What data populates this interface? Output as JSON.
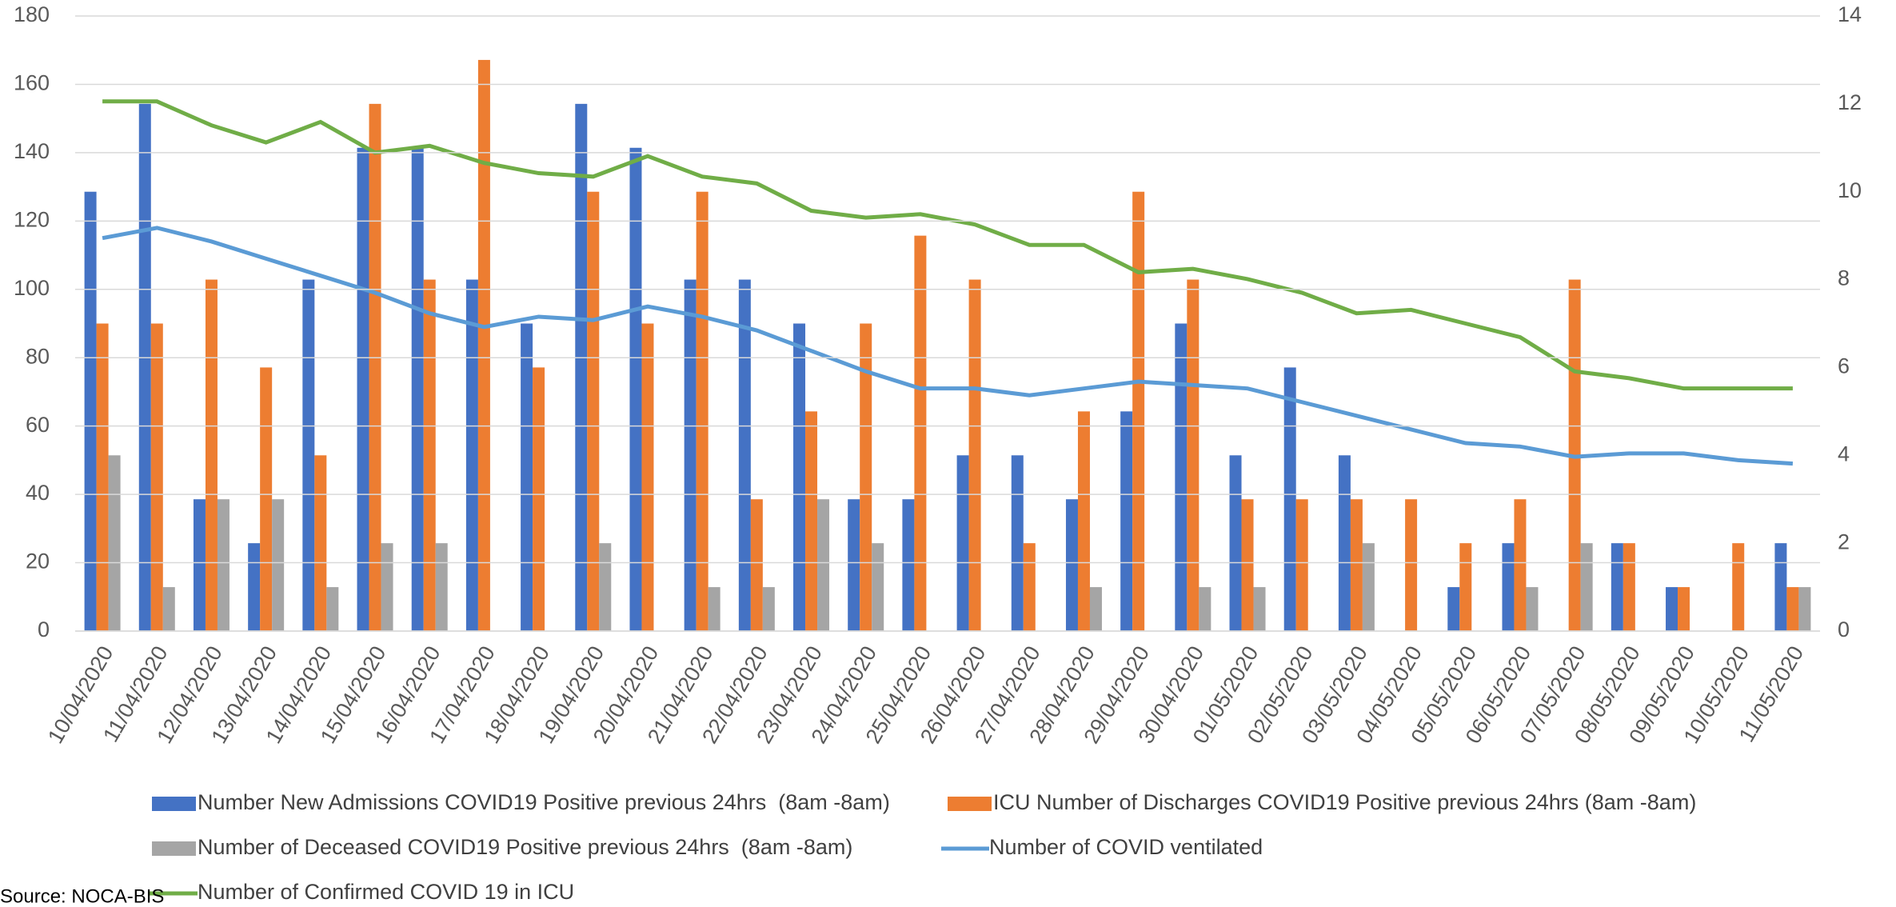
{
  "chart_data": {
    "type": "bar",
    "categories": [
      "10/04/2020",
      "11/04/2020",
      "12/04/2020",
      "13/04/2020",
      "14/04/2020",
      "15/04/2020",
      "16/04/2020",
      "17/04/2020",
      "18/04/2020",
      "19/04/2020",
      "20/04/2020",
      "21/04/2020",
      "22/04/2020",
      "23/04/2020",
      "24/04/2020",
      "25/04/2020",
      "26/04/2020",
      "27/04/2020",
      "28/04/2020",
      "29/04/2020",
      "30/04/2020",
      "01/05/2020",
      "02/05/2020",
      "03/05/2020",
      "04/05/2020",
      "05/05/2020",
      "06/05/2020",
      "07/05/2020",
      "08/05/2020",
      "09/05/2020",
      "10/05/2020",
      "11/05/2020"
    ],
    "series": [
      {
        "name": "Number New Admissions COVID19 Positive previous 24hrs  (8am -8am)",
        "type": "bar",
        "axis": "y2",
        "color": "#4472c4",
        "values": [
          10,
          12,
          3,
          2,
          8,
          11,
          11,
          8,
          7,
          12,
          11,
          8,
          8,
          7,
          3,
          3,
          4,
          4,
          3,
          5,
          7,
          4,
          6,
          4,
          0,
          1,
          2,
          0,
          2,
          1,
          0,
          2
        ]
      },
      {
        "name": "ICU Number of Discharges COVID19 Positive previous 24hrs (8am -8am)",
        "type": "bar",
        "axis": "y2",
        "color": "#ed7d31",
        "values": [
          7,
          7,
          8,
          6,
          4,
          12,
          8,
          13,
          6,
          10,
          7,
          10,
          3,
          5,
          7,
          9,
          8,
          2,
          5,
          10,
          8,
          3,
          3,
          3,
          3,
          2,
          3,
          8,
          2,
          1,
          2,
          1
        ]
      },
      {
        "name": "Number of Deceased COVID19 Positive previous 24hrs  (8am -8am)",
        "type": "bar",
        "axis": "y2",
        "color": "#a5a5a5",
        "values": [
          4,
          1,
          3,
          3,
          1,
          2,
          2,
          0,
          0,
          2,
          0,
          1,
          1,
          3,
          2,
          0,
          0,
          0,
          1,
          0,
          1,
          1,
          0,
          2,
          0,
          0,
          1,
          2,
          0,
          0,
          0,
          1
        ]
      },
      {
        "name": "Number of COVID ventilated",
        "type": "line",
        "color": "#5b9bd5",
        "values": [
          115,
          118,
          114,
          109,
          104,
          99,
          93,
          89,
          92,
          91,
          95,
          92,
          88,
          82,
          76,
          71,
          71,
          69,
          71,
          73,
          72,
          71,
          67,
          63,
          59,
          55,
          54,
          51,
          52,
          52,
          50,
          49
        ]
      },
      {
        "name": "Number of Confirmed COVID 19 in ICU",
        "type": "line",
        "color": "#70ad47",
        "values": [
          155,
          155,
          148,
          143,
          149,
          140,
          142,
          137,
          134,
          133,
          139,
          133,
          131,
          123,
          121,
          122,
          119,
          113,
          113,
          105,
          106,
          103,
          99,
          93,
          94,
          90,
          86,
          76,
          74,
          71,
          71,
          71
        ]
      }
    ],
    "ylim": [
      0,
      180
    ],
    "yticks": [
      0,
      20,
      40,
      60,
      80,
      100,
      120,
      140,
      160,
      180
    ],
    "y2lim": [
      0,
      14
    ],
    "y2ticks": [
      0,
      2,
      4,
      6,
      8,
      10,
      12,
      14
    ],
    "grid": true,
    "legend": "bottom",
    "source": "Source: NOCA-BIS"
  }
}
